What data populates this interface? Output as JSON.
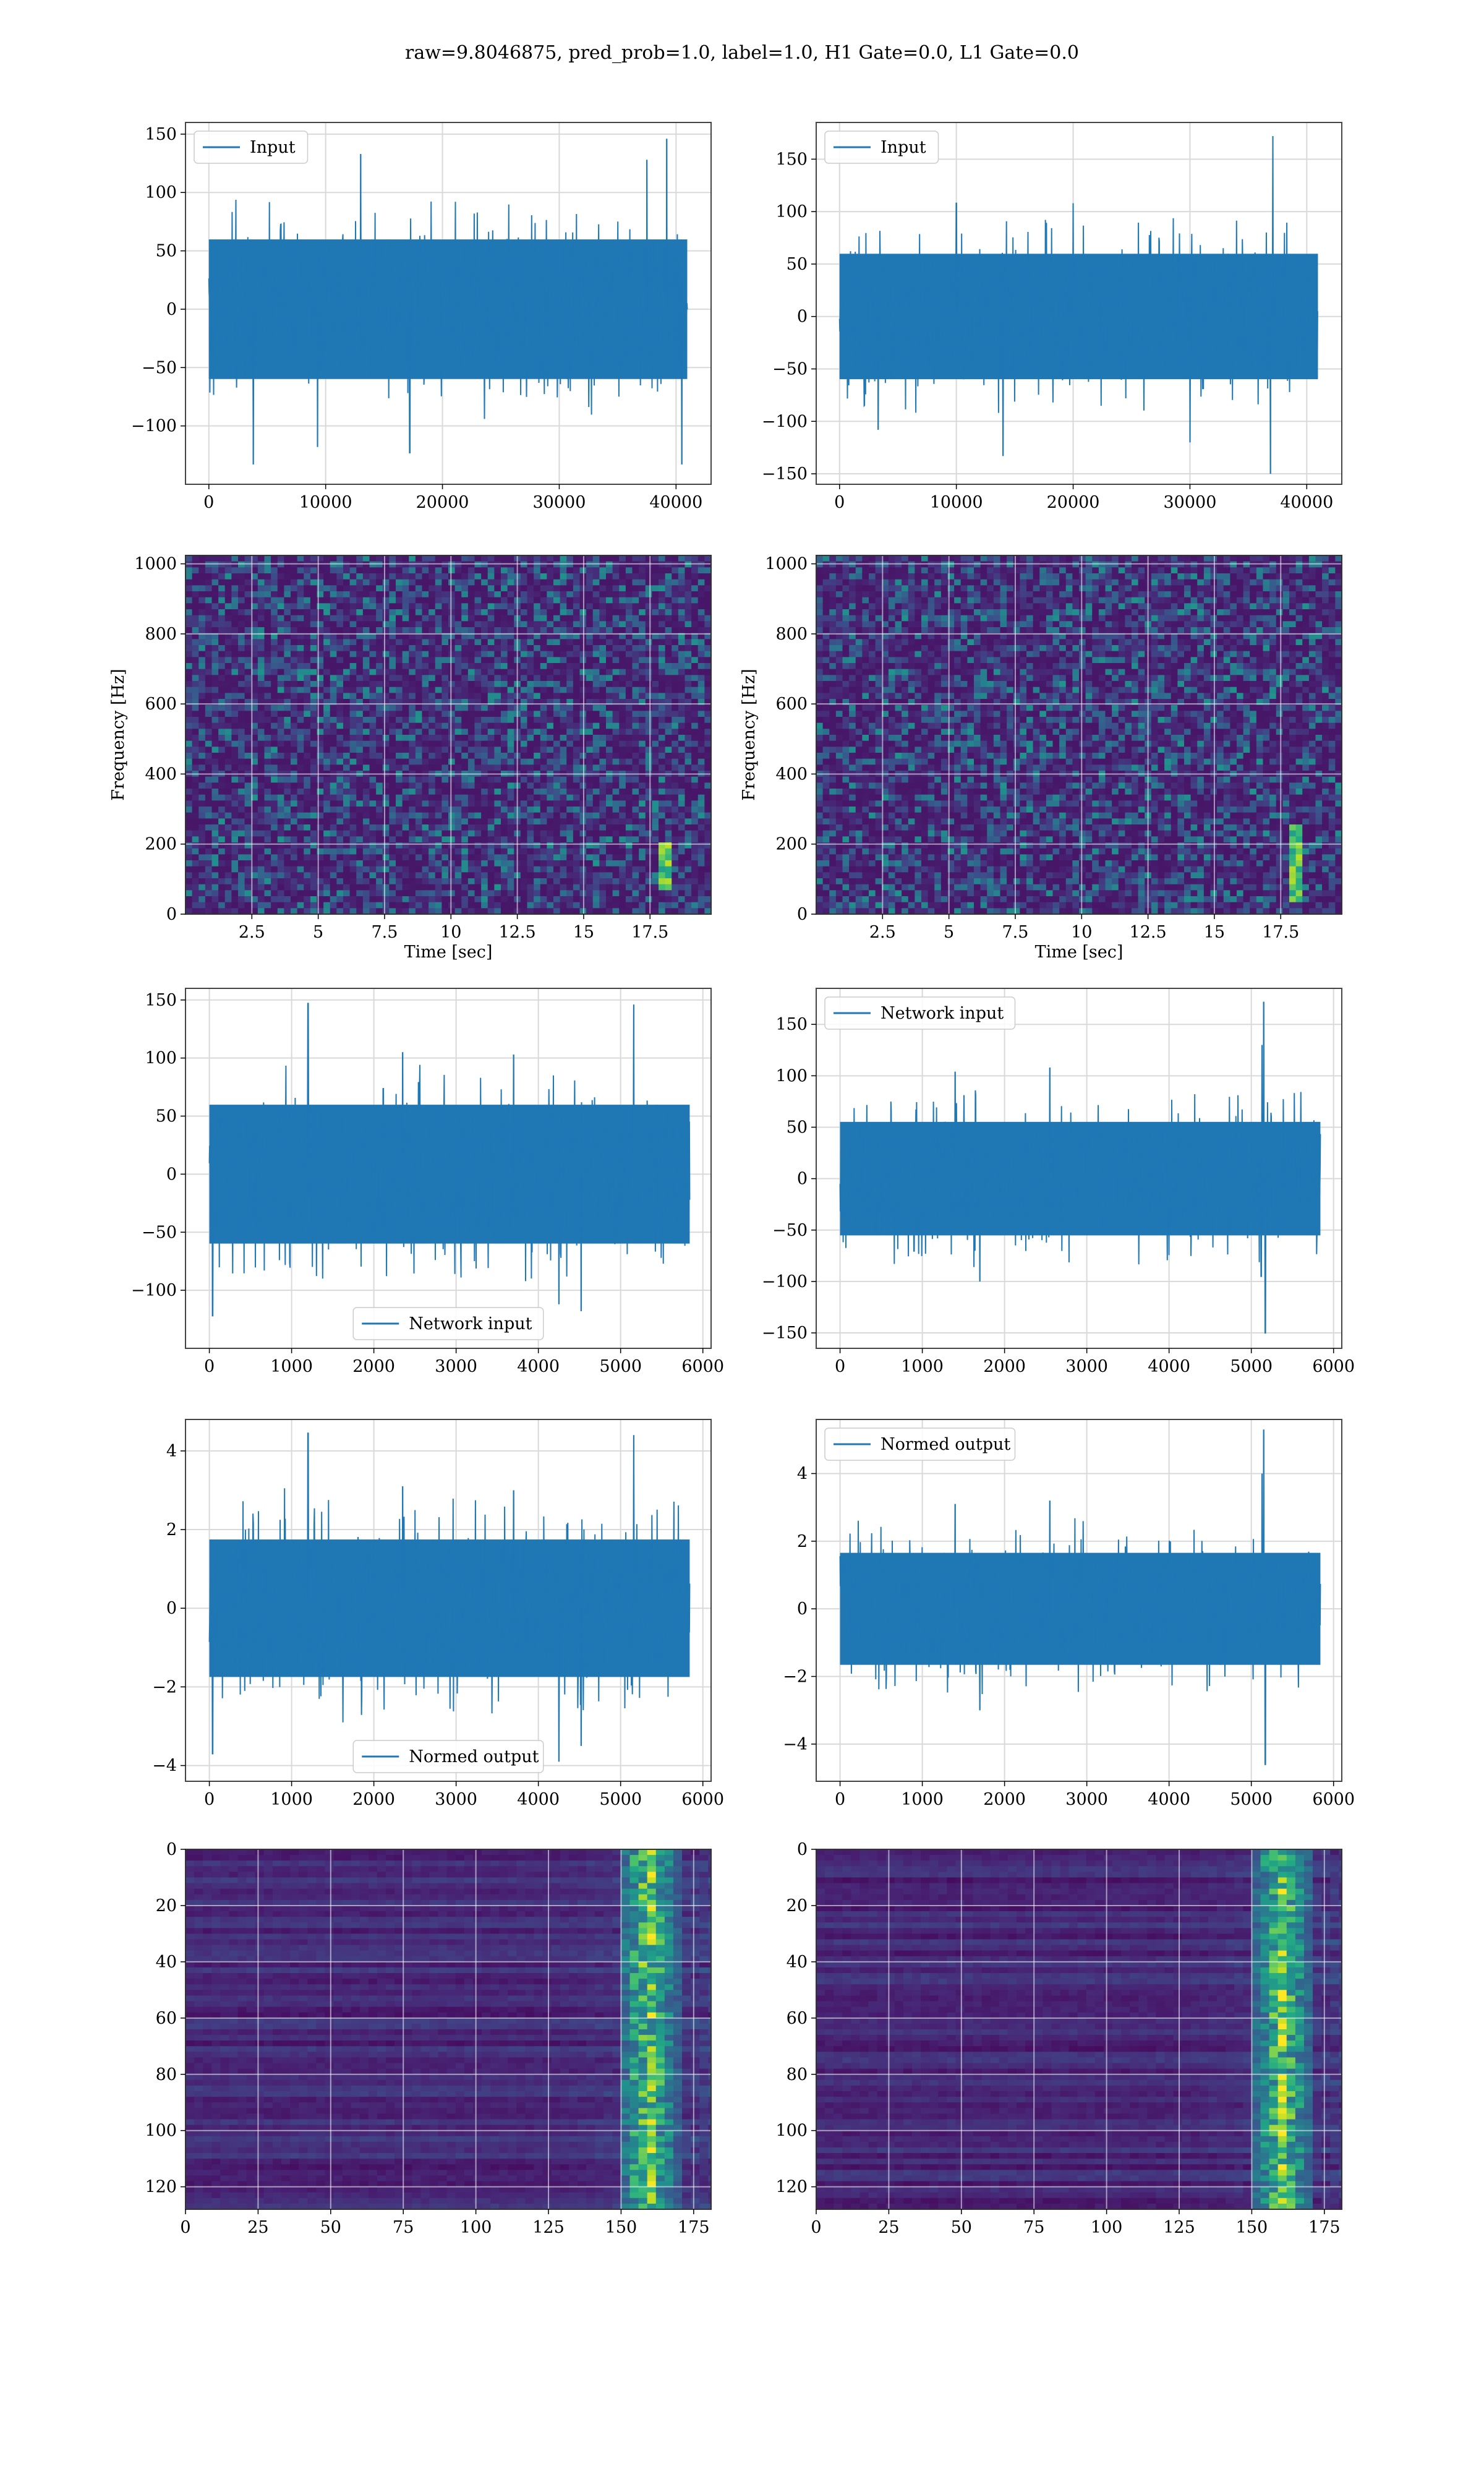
{
  "figure": {
    "title": "raw=9.8046875, pred_prob=1.0, label=1.0, H1 Gate=0.0, L1 Gate=0.0"
  },
  "chart_data": [
    {
      "panel": "row1-left",
      "type": "line",
      "series": [
        {
          "name": "Input",
          "color": "#1f77b4"
        }
      ],
      "legend": "upper left",
      "xlim": [
        -2000,
        43000
      ],
      "ylim": [
        -150,
        160
      ],
      "xticks": [
        0,
        10000,
        20000,
        30000,
        40000
      ],
      "yticks": [
        -100,
        -50,
        0,
        50,
        100,
        150
      ],
      "signal": {
        "x_start": 0,
        "x_end": 40960,
        "envelope_typical": 65,
        "max": 146,
        "min": -133
      },
      "spikes": [
        [
          39200,
          146
        ],
        [
          13000,
          133
        ],
        [
          37500,
          128
        ],
        [
          3800,
          -133
        ],
        [
          40500,
          -133
        ],
        [
          9300,
          -118
        ],
        [
          17200,
          -123
        ]
      ],
      "grid": true
    },
    {
      "panel": "row1-right",
      "type": "line",
      "series": [
        {
          "name": "Input",
          "color": "#1f77b4"
        }
      ],
      "legend": "upper left",
      "xlim": [
        -2000,
        43000
      ],
      "ylim": [
        -160,
        185
      ],
      "xticks": [
        0,
        10000,
        20000,
        30000,
        40000
      ],
      "yticks": [
        -150,
        -100,
        -50,
        0,
        50,
        100,
        150
      ],
      "signal": {
        "x_start": 0,
        "x_end": 40960,
        "envelope_typical": 65,
        "max": 172,
        "min": -150
      },
      "spikes": [
        [
          37100,
          172
        ],
        [
          36900,
          -150
        ],
        [
          14000,
          -133
        ],
        [
          3300,
          -108
        ],
        [
          30000,
          -120
        ],
        [
          10000,
          108
        ],
        [
          20000,
          108
        ]
      ],
      "grid": true
    },
    {
      "panel": "row2-left",
      "type": "heatmap",
      "colormap": "viridis",
      "xlabel": "Time [sec]",
      "ylabel": "Frequency [Hz]",
      "xlim": [
        0,
        19.8
      ],
      "ylim": [
        0,
        1024
      ],
      "xticks": [
        2.5,
        5.0,
        7.5,
        10.0,
        12.5,
        15.0,
        17.5
      ],
      "yticks": [
        0,
        200,
        400,
        600,
        800,
        1000
      ],
      "hotspots": [
        {
          "t": 18.0,
          "f_low": 60,
          "f_high": 200
        }
      ],
      "grid": true
    },
    {
      "panel": "row2-right",
      "type": "heatmap",
      "colormap": "viridis",
      "xlabel": "Time [sec]",
      "ylabel": "Frequency [Hz]",
      "xlim": [
        0,
        19.8
      ],
      "ylim": [
        0,
        1024
      ],
      "xticks": [
        2.5,
        5.0,
        7.5,
        10.0,
        12.5,
        15.0,
        17.5
      ],
      "yticks": [
        0,
        200,
        400,
        600,
        800,
        1000
      ],
      "hotspots": [
        {
          "t": 18.0,
          "f_low": 30,
          "f_high": 260
        }
      ],
      "grid": true
    },
    {
      "panel": "row3-left",
      "type": "line",
      "series": [
        {
          "name": "Network input",
          "color": "#1f77b4"
        }
      ],
      "legend": "lower center",
      "xlim": [
        -290,
        6100
      ],
      "ylim": [
        -150,
        160
      ],
      "xticks": [
        0,
        1000,
        2000,
        3000,
        4000,
        5000,
        6000
      ],
      "yticks": [
        -100,
        -50,
        0,
        50,
        100,
        150
      ],
      "signal": {
        "x_start": 0,
        "x_end": 5840,
        "envelope_typical": 65,
        "max": 147,
        "min": -133
      },
      "spikes": [
        [
          1200,
          147
        ],
        [
          5160,
          146
        ],
        [
          40,
          -122
        ],
        [
          4520,
          -118
        ],
        [
          4250,
          -112
        ],
        [
          2350,
          105
        ],
        [
          3700,
          103
        ]
      ],
      "grid": true
    },
    {
      "panel": "row3-right",
      "type": "line",
      "series": [
        {
          "name": "Network input",
          "color": "#1f77b4"
        }
      ],
      "legend": "upper left",
      "xlim": [
        -290,
        6100
      ],
      "ylim": [
        -165,
        185
      ],
      "xticks": [
        0,
        1000,
        2000,
        3000,
        4000,
        5000,
        6000
      ],
      "yticks": [
        -150,
        -100,
        -50,
        0,
        50,
        100,
        150
      ],
      "signal": {
        "x_start": 0,
        "x_end": 5840,
        "envelope_typical": 60,
        "max": 172,
        "min": -150
      },
      "spikes": [
        [
          5150,
          172
        ],
        [
          5130,
          130
        ],
        [
          5170,
          -150
        ],
        [
          5120,
          -95
        ],
        [
          1700,
          -100
        ],
        [
          2550,
          108
        ],
        [
          1400,
          104
        ]
      ],
      "grid": true
    },
    {
      "panel": "row4-left",
      "type": "line",
      "series": [
        {
          "name": "Normed output",
          "color": "#1f77b4"
        }
      ],
      "legend": "lower center",
      "xlim": [
        -290,
        6100
      ],
      "ylim": [
        -4.4,
        4.8
      ],
      "xticks": [
        0,
        1000,
        2000,
        3000,
        4000,
        5000,
        6000
      ],
      "yticks": [
        -4,
        -2,
        0,
        2,
        4
      ],
      "signal": {
        "x_start": 0,
        "x_end": 5840,
        "envelope_typical": 1.9,
        "max": 4.45,
        "min": -3.9
      },
      "spikes": [
        [
          1200,
          4.45
        ],
        [
          5160,
          4.4
        ],
        [
          4250,
          -3.9
        ],
        [
          40,
          -3.7
        ],
        [
          4520,
          -3.5
        ],
        [
          2350,
          3.1
        ],
        [
          3700,
          3.0
        ]
      ],
      "grid": true
    },
    {
      "panel": "row4-right",
      "type": "line",
      "series": [
        {
          "name": "Normed output",
          "color": "#1f77b4"
        }
      ],
      "legend": "upper left",
      "xlim": [
        -290,
        6100
      ],
      "ylim": [
        -5.1,
        5.6
      ],
      "xticks": [
        0,
        1000,
        2000,
        3000,
        4000,
        5000,
        6000
      ],
      "yticks": [
        -4,
        -2,
        0,
        2,
        4
      ],
      "signal": {
        "x_start": 0,
        "x_end": 5840,
        "envelope_typical": 1.8,
        "max": 5.3,
        "min": -4.6
      },
      "spikes": [
        [
          5150,
          5.3
        ],
        [
          5130,
          4.0
        ],
        [
          5170,
          -4.6
        ],
        [
          1700,
          -3.0
        ],
        [
          2550,
          3.2
        ],
        [
          1400,
          3.1
        ]
      ],
      "grid": true
    },
    {
      "panel": "row5-left",
      "type": "heatmap",
      "colormap": "viridis",
      "xlim": [
        0,
        181
      ],
      "ylim": [
        128,
        0
      ],
      "xticks": [
        0,
        25,
        50,
        75,
        100,
        125,
        150,
        175
      ],
      "yticks": [
        0,
        20,
        40,
        60,
        80,
        100,
        120
      ],
      "hotspots": [
        {
          "x_low": 150,
          "x_high": 168,
          "center": 158
        }
      ],
      "grid": true
    },
    {
      "panel": "row5-right",
      "type": "heatmap",
      "colormap": "viridis",
      "xlim": [
        0,
        181
      ],
      "ylim": [
        128,
        0
      ],
      "xticks": [
        0,
        25,
        50,
        75,
        100,
        125,
        150,
        175
      ],
      "yticks": [
        0,
        20,
        40,
        60,
        80,
        100,
        120
      ],
      "hotspots": [
        {
          "x_low": 148,
          "x_high": 170,
          "center": 159
        }
      ],
      "grid": true
    }
  ]
}
